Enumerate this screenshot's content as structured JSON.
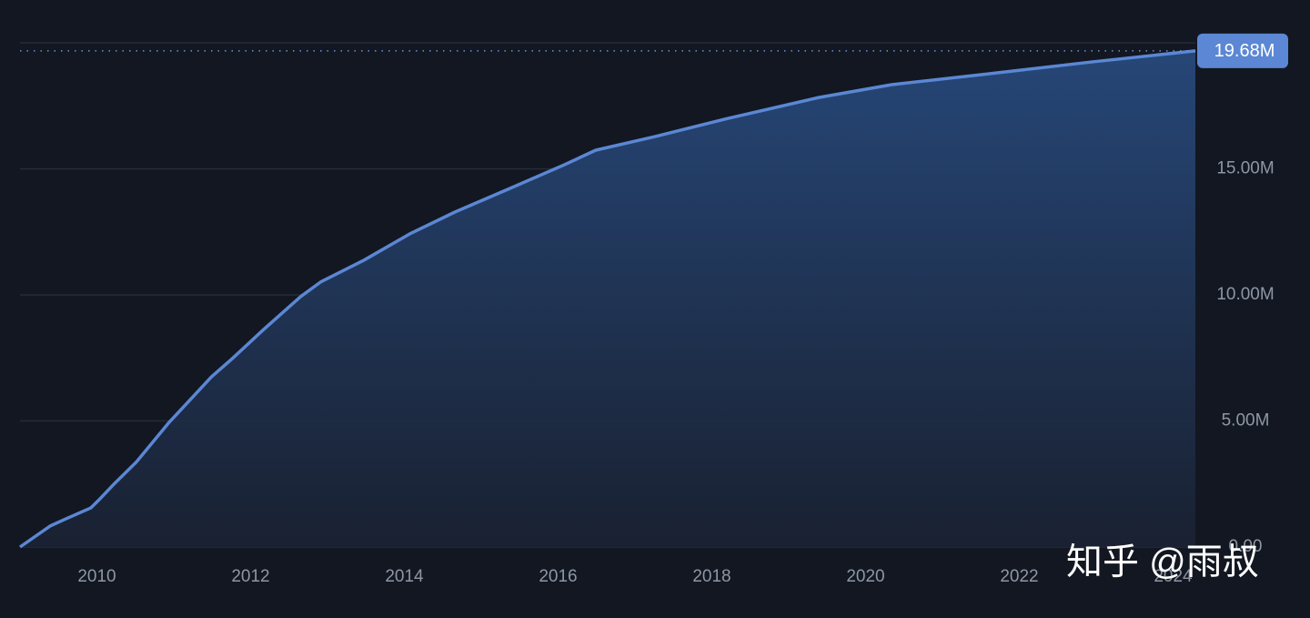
{
  "chart_data": {
    "type": "area",
    "x": [
      2009.0,
      2009.39,
      2009.57,
      2009.92,
      2010.04,
      2010.22,
      2010.51,
      2010.93,
      2011.28,
      2011.49,
      2011.76,
      2012.17,
      2012.65,
      2012.91,
      2013.47,
      2014.07,
      2014.66,
      2015.37,
      2016.08,
      2016.49,
      2017.26,
      2018.21,
      2019.39,
      2020.34,
      2021.52,
      2022.94,
      2024.29
    ],
    "values": [
      0,
      0.83,
      1.08,
      1.55,
      1.91,
      2.49,
      3.36,
      4.91,
      6.06,
      6.75,
      7.47,
      8.63,
      9.93,
      10.51,
      11.37,
      12.42,
      13.29,
      14.22,
      15.16,
      15.74,
      16.28,
      17.0,
      17.83,
      18.34,
      18.74,
      19.24,
      19.68
    ],
    "last_value_label": "19.68M",
    "color": "#5b87d4",
    "xlim": [
      2009,
      2024.29
    ],
    "xticks": [
      2010,
      2012,
      2014,
      2016,
      2018,
      2020,
      2022,
      2024
    ],
    "ylim": [
      0,
      20
    ],
    "yticks": [
      {
        "value": 0,
        "label": "0.00"
      },
      {
        "value": 5,
        "label": "5.00M"
      },
      {
        "value": 10,
        "label": "10.00M"
      },
      {
        "value": 15,
        "label": "15.00M"
      }
    ],
    "grid": true,
    "watermark": "知乎 @雨叔"
  }
}
